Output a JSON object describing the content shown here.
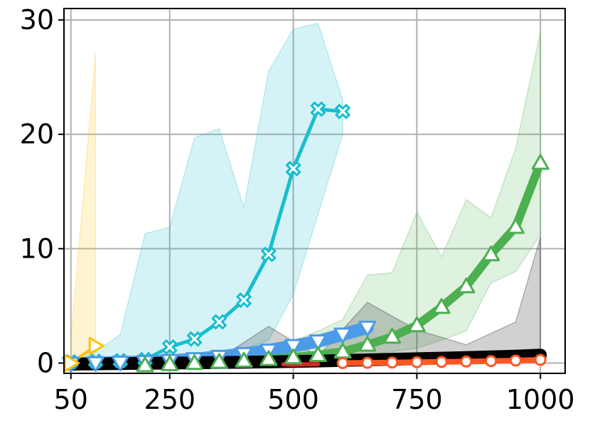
{
  "chart_data": {
    "type": "line",
    "title": "",
    "xlabel": "",
    "ylabel": "",
    "xlim": [
      36,
      1050
    ],
    "ylim": [
      -0.9,
      31
    ],
    "grid": true,
    "xticks": [
      50,
      250,
      500,
      750,
      1000
    ],
    "yticks": [
      0,
      10,
      20,
      30
    ],
    "xtick_labels": [
      "50",
      "250",
      "500",
      "750",
      "1000"
    ],
    "ytick_labels": [
      "0",
      "10",
      "20",
      "30"
    ],
    "series": [
      {
        "color": "#17becf",
        "marker": "X",
        "line_width": 5,
        "x": [
          50,
          100,
          150,
          200,
          250,
          300,
          350,
          400,
          450,
          500,
          550,
          600
        ],
        "y": [
          0.1,
          0.15,
          0.2,
          0.3,
          1.4,
          2.1,
          3.6,
          5.5,
          9.5,
          17.0,
          22.2,
          22.0
        ],
        "band_low": [
          0.0,
          0.0,
          0.0,
          0.1,
          0.3,
          0.5,
          0.8,
          1.2,
          2.0,
          6.0,
          13.0,
          20.0
        ],
        "band_high": [
          0.3,
          1.0,
          2.5,
          11.3,
          11.9,
          19.7,
          20.5,
          13.6,
          25.5,
          29.2,
          29.7,
          23.0
        ]
      },
      {
        "color": "#4c9be8",
        "marker": "v",
        "line_width": 18,
        "x": [
          50,
          100,
          150,
          200,
          250,
          300,
          350,
          400,
          450,
          500,
          550,
          600,
          650
        ],
        "y": [
          -0.05,
          0.0,
          0.05,
          0.1,
          0.2,
          0.35,
          0.55,
          0.8,
          1.1,
          1.5,
          1.9,
          2.5,
          3.1
        ]
      },
      {
        "color": "#4caf50",
        "marker": "^",
        "line_width": 12,
        "x": [
          200,
          250,
          300,
          350,
          400,
          450,
          500,
          550,
          600,
          650,
          700,
          750,
          800,
          850,
          900,
          950,
          1000
        ],
        "y": [
          -0.2,
          -0.1,
          0.0,
          0.1,
          0.2,
          0.35,
          0.5,
          0.7,
          1.0,
          1.6,
          2.3,
          3.3,
          4.9,
          6.7,
          9.5,
          11.9,
          17.5
        ],
        "band_low": [
          -0.2,
          -0.2,
          -0.2,
          -0.1,
          0.0,
          0.1,
          0.2,
          0.3,
          0.4,
          0.7,
          1.0,
          1.3,
          2.0,
          2.8,
          7.0,
          8.0,
          11.2
        ],
        "band_high": [
          0.1,
          0.2,
          0.4,
          0.6,
          0.9,
          1.3,
          1.9,
          2.8,
          3.8,
          7.7,
          7.9,
          13.2,
          9.3,
          14.3,
          12.7,
          18.8,
          28.9
        ]
      },
      {
        "color": "#000000",
        "marker": "",
        "line_width": 18,
        "x": [
          50,
          150,
          250,
          350,
          450,
          550,
          650,
          750,
          850,
          950,
          1000
        ],
        "y": [
          -0.1,
          -0.05,
          0.0,
          0.05,
          0.1,
          0.18,
          0.28,
          0.38,
          0.48,
          0.6,
          0.7
        ],
        "band_low": [
          -0.2,
          -0.2,
          -0.2,
          -0.1,
          -0.1,
          0.0,
          0.0,
          0.1,
          0.1,
          0.2,
          0.3
        ],
        "band_high": [
          0.1,
          0.1,
          0.2,
          0.4,
          3.2,
          0.6,
          5.3,
          2.9,
          1.6,
          3.6,
          11.0
        ]
      },
      {
        "color": "#d62728",
        "marker": "",
        "line_width": 6,
        "x": [
          480,
          500,
          520,
          550
        ],
        "y": [
          -0.1,
          -0.15,
          -0.12,
          -0.1
        ]
      },
      {
        "color": "#ff5722",
        "marker": "o",
        "line_width": 8,
        "x": [
          600,
          650,
          700,
          750,
          800,
          850,
          900,
          950,
          1000
        ],
        "y": [
          0.0,
          0.02,
          0.05,
          0.08,
          0.1,
          0.13,
          0.17,
          0.22,
          0.28
        ]
      },
      {
        "color": "#ffc107",
        "marker": ">",
        "line_width": 4,
        "x": [
          50,
          100
        ],
        "y": [
          0.0,
          1.5
        ],
        "band_low": [
          0.0,
          0.0
        ],
        "band_high": [
          2.0,
          27.1
        ]
      }
    ]
  }
}
